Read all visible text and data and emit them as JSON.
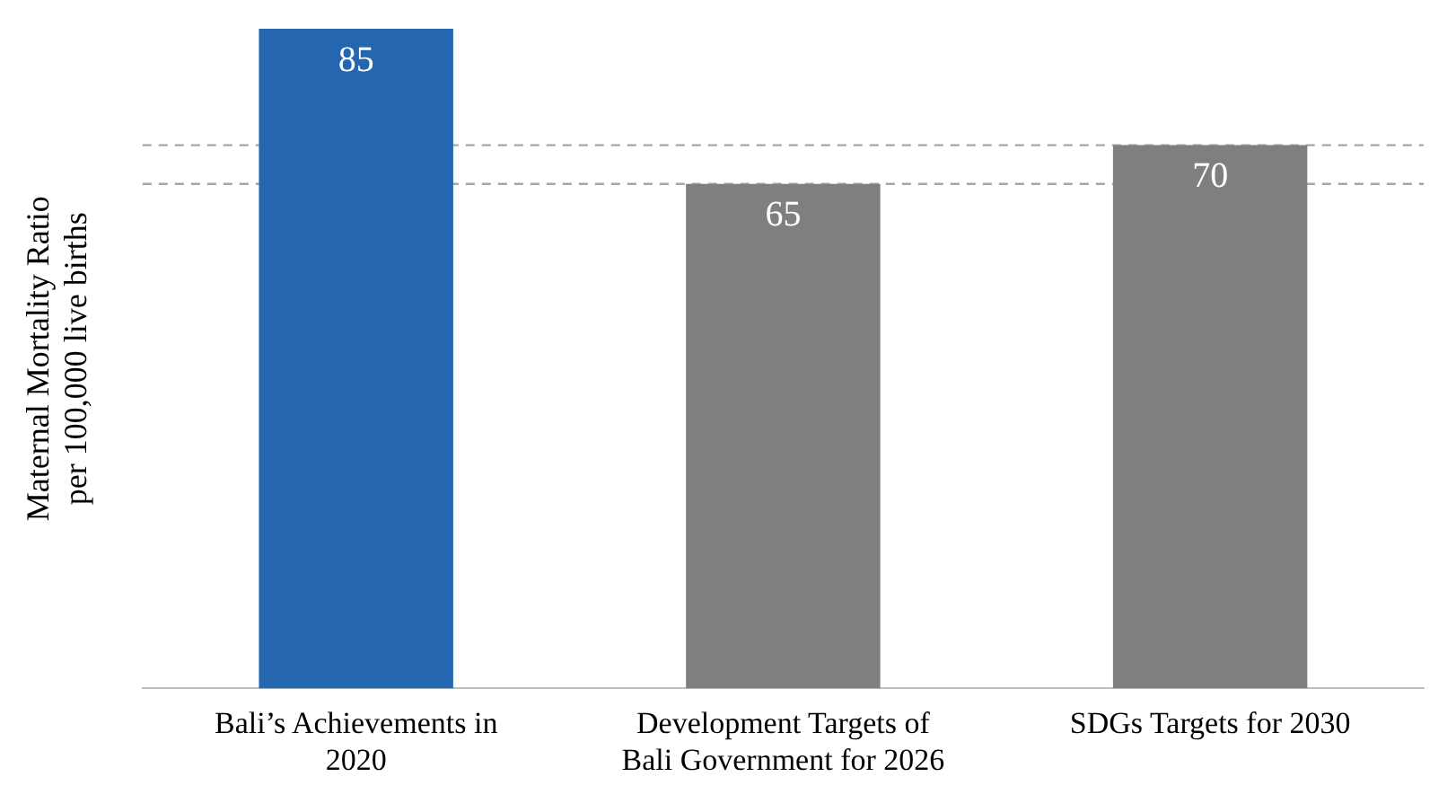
{
  "chart_data": {
    "type": "bar",
    "ylabel": "Maternal Mortality Ratio per 100,000 live births",
    "categories": [
      "Bali’s Achievements in 2020",
      "Development Targets of Bali Government for 2026",
      "SDGs Targets for 2030"
    ],
    "values": [
      85,
      65,
      70
    ],
    "colors": [
      "#2566b0",
      "#7f7f7f",
      "#7f7f7f"
    ],
    "ylim": [
      0,
      85
    ],
    "data_labels": true,
    "grid": false,
    "legend": false,
    "tick_labels": "x",
    "ref_lines": [
      {
        "axis": "y",
        "value": 70,
        "color": "#a6a6a6",
        "line_style": "dashed"
      },
      {
        "axis": "y",
        "value": 65,
        "color": "#a6a6a6",
        "line_style": "dashed"
      }
    ]
  }
}
